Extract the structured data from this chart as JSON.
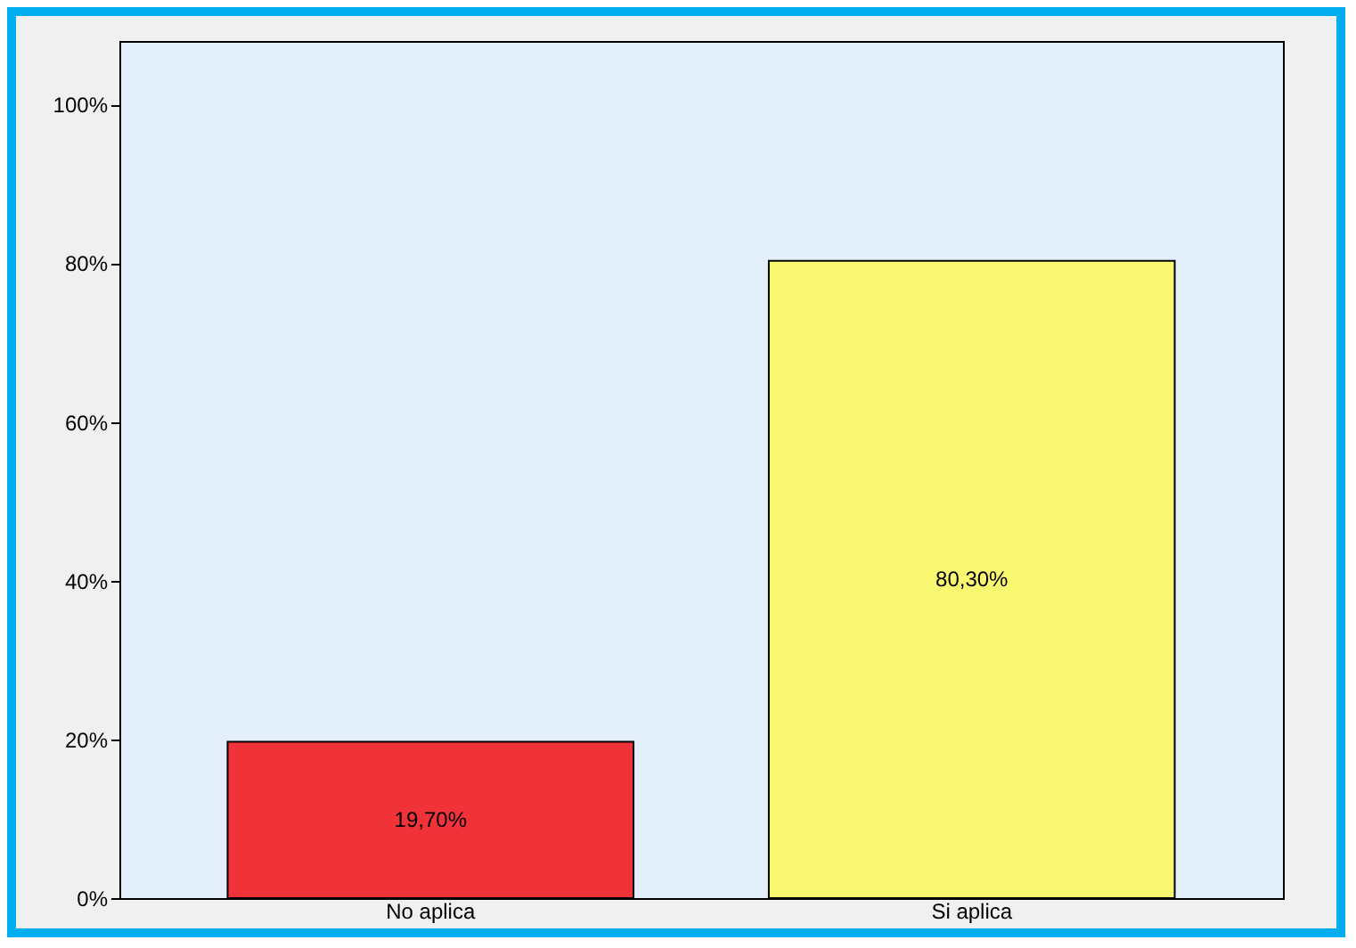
{
  "chart_data": {
    "type": "bar",
    "categories": [
      "No aplica",
      "Si aplica"
    ],
    "values": [
      19.7,
      80.3
    ],
    "colors": [
      "#ef3338",
      "#f9f871"
    ],
    "value_labels": [
      "19,70%",
      "80,30%"
    ],
    "ylim": [
      0,
      108
    ],
    "yticks": [
      {
        "value": 0,
        "label": "0%"
      },
      {
        "value": 20,
        "label": "20%"
      },
      {
        "value": 40,
        "label": "40%"
      },
      {
        "value": 60,
        "label": "60%"
      },
      {
        "value": 80,
        "label": "80%"
      },
      {
        "value": 100,
        "label": "100%"
      }
    ],
    "grid": false
  }
}
